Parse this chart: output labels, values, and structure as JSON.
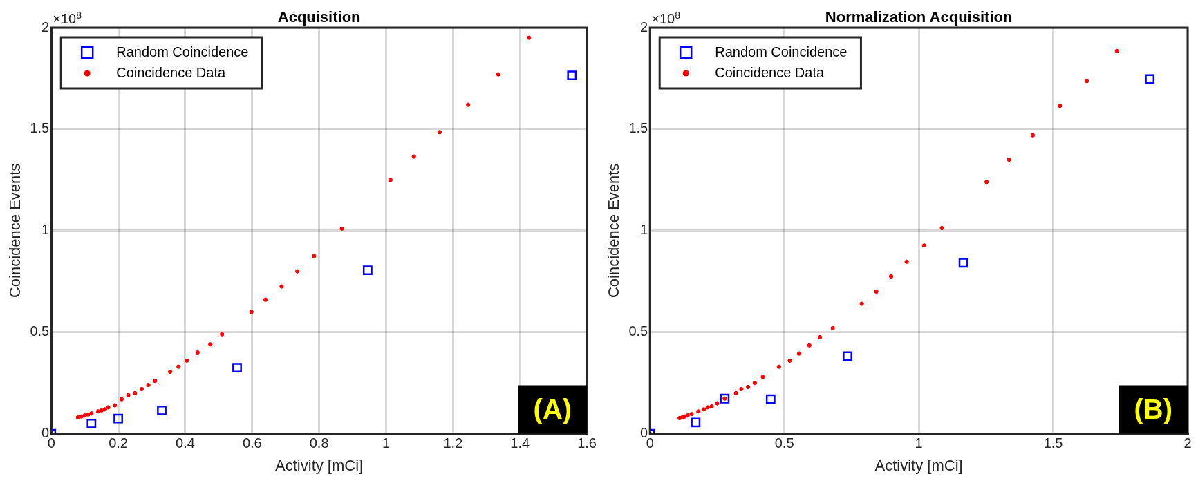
{
  "chart_data": [
    {
      "type": "scatter",
      "title": "Acquisition",
      "xlabel": "Activity [mCi]",
      "ylabel": "Coincidence Events",
      "annotations": [
        "×10$^{8}$",
        "(A)"
      ],
      "xlim": [
        0,
        1.6
      ],
      "xticks": [
        0,
        0.2,
        0.4,
        0.6,
        0.8,
        1,
        1.2,
        1.4,
        1.6
      ],
      "ylim": [
        0,
        2
      ],
      "yticks": [
        0,
        0.5,
        1,
        1.5,
        2
      ],
      "grid": true,
      "legend": "top left",
      "series": [
        {
          "name": "Random Coincidence",
          "color": "#0000ff",
          "marker": "square",
          "x": [
            0,
            0.12,
            0.2,
            0.33,
            0.555,
            0.945,
            1.555
          ],
          "values": [
            0,
            0.05,
            0.075,
            0.115,
            0.325,
            0.805,
            1.765
          ]
        },
        {
          "name": "Coincidence Data",
          "color": "#ff0000",
          "marker": "circle",
          "x": [
            0,
            0.08,
            0.09,
            0.1,
            0.11,
            0.12,
            0.14,
            0.15,
            0.16,
            0.17,
            0.19,
            0.21,
            0.23,
            0.25,
            0.27,
            0.29,
            0.31,
            0.355,
            0.38,
            0.405,
            0.437,
            0.475,
            0.51,
            0.598,
            0.64,
            0.688,
            0.735,
            0.785,
            0.868,
            1.013,
            1.083,
            1.16,
            1.245,
            1.335,
            1.427
          ],
          "values": [
            0,
            0.08,
            0.085,
            0.09,
            0.095,
            0.1,
            0.11,
            0.115,
            0.12,
            0.13,
            0.14,
            0.17,
            0.19,
            0.2,
            0.22,
            0.24,
            0.26,
            0.305,
            0.33,
            0.36,
            0.4,
            0.44,
            0.49,
            0.6,
            0.66,
            0.725,
            0.8,
            0.875,
            1.01,
            1.25,
            1.365,
            1.485,
            1.62,
            1.77,
            1.95
          ]
        }
      ]
    },
    {
      "type": "scatter",
      "title": "Normalization Acquisition",
      "xlabel": "Activity [mCi]",
      "ylabel": "Coincidence Events",
      "annotations": [
        "×10$^{8}$",
        "(B)"
      ],
      "xlim": [
        0,
        2
      ],
      "xticks": [
        0,
        0.5,
        1,
        1.5,
        2
      ],
      "ylim": [
        0,
        2
      ],
      "yticks": [
        0,
        0.5,
        1,
        1.5,
        2
      ],
      "grid": true,
      "legend": "top left",
      "series": [
        {
          "name": "Random Coincidence",
          "color": "#0000ff",
          "marker": "square",
          "x": [
            0,
            0.17,
            0.278,
            0.449,
            0.735,
            1.166,
            1.859
          ],
          "values": [
            0,
            0.055,
            0.173,
            0.17,
            0.382,
            0.842,
            1.747
          ]
        },
        {
          "name": "Coincidence Data",
          "color": "#ff0000",
          "marker": "circle",
          "x": [
            0,
            0.11,
            0.12,
            0.13,
            0.14,
            0.155,
            0.18,
            0.2,
            0.215,
            0.23,
            0.25,
            0.278,
            0.32,
            0.34,
            0.365,
            0.39,
            0.42,
            0.48,
            0.52,
            0.555,
            0.593,
            0.632,
            0.68,
            0.788,
            0.842,
            0.897,
            0.955,
            1.02,
            1.086,
            1.252,
            1.336,
            1.424,
            1.525,
            1.625,
            1.737
          ],
          "values": [
            0,
            0.077,
            0.08,
            0.085,
            0.09,
            0.097,
            0.11,
            0.12,
            0.13,
            0.135,
            0.15,
            0.173,
            0.2,
            0.22,
            0.23,
            0.25,
            0.28,
            0.33,
            0.36,
            0.395,
            0.435,
            0.475,
            0.52,
            0.64,
            0.7,
            0.775,
            0.847,
            0.927,
            1.013,
            1.24,
            1.35,
            1.47,
            1.615,
            1.737,
            1.885
          ]
        }
      ]
    }
  ]
}
